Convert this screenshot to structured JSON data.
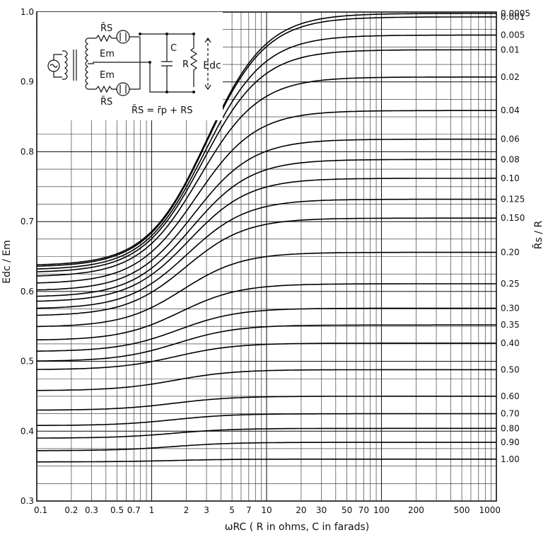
{
  "chart_data": {
    "type": "line",
    "x_scale": "log",
    "xlim": [
      0.1,
      1000
    ],
    "ylim": [
      0.3,
      1.0
    ],
    "grid": true,
    "xlabel": "ωRC ( R in ohms, C in farads)",
    "ylabel": "Edc / Em",
    "right_label": "R̄s / R",
    "x_ticks": [
      "0.1",
      "0.2",
      "0.3",
      "0.5",
      "0.7",
      "1",
      "2",
      "3",
      "5",
      "7",
      "10",
      "20",
      "30",
      "50",
      "70",
      "100",
      "200",
      "500",
      "1000"
    ],
    "x_tick_values": [
      0.1,
      0.2,
      0.3,
      0.5,
      0.7,
      1,
      2,
      3,
      5,
      7,
      10,
      20,
      30,
      50,
      70,
      100,
      200,
      500,
      1000
    ],
    "y_ticks": [
      "0.3",
      "0.4",
      "0.5",
      "0.6",
      "0.7",
      "0.8",
      "0.9",
      "1.0"
    ],
    "y_tick_values": [
      0.3,
      0.4,
      0.5,
      0.6,
      0.7,
      0.8,
      0.9,
      1.0
    ],
    "series": [
      {
        "name": "0.0005",
        "low": 0.637,
        "high": 0.998
      },
      {
        "name": "0.001",
        "low": 0.635,
        "high": 0.993
      },
      {
        "name": "0.005",
        "low": 0.631,
        "high": 0.967
      },
      {
        "name": "0.01",
        "low": 0.627,
        "high": 0.946
      },
      {
        "name": "0.02",
        "low": 0.621,
        "high": 0.907
      },
      {
        "name": "0.04",
        "low": 0.611,
        "high": 0.859
      },
      {
        "name": "0.06",
        "low": 0.601,
        "high": 0.818
      },
      {
        "name": "0.08",
        "low": 0.592,
        "high": 0.789
      },
      {
        "name": "0.10",
        "low": 0.585,
        "high": 0.762
      },
      {
        "name": "0.125",
        "low": 0.575,
        "high": 0.732
      },
      {
        "name": "0.150",
        "low": 0.565,
        "high": 0.705
      },
      {
        "name": "0.20",
        "low": 0.549,
        "high": 0.656
      },
      {
        "name": "0.25",
        "low": 0.53,
        "high": 0.611
      },
      {
        "name": "0.30",
        "low": 0.514,
        "high": 0.576
      },
      {
        "name": "0.35",
        "low": 0.5,
        "high": 0.552
      },
      {
        "name": "0.40",
        "low": 0.488,
        "high": 0.526
      },
      {
        "name": "0.50",
        "low": 0.458,
        "high": 0.488
      },
      {
        "name": "0.60",
        "low": 0.43,
        "high": 0.45
      },
      {
        "name": "0.70",
        "low": 0.408,
        "high": 0.425
      },
      {
        "name": "0.80",
        "low": 0.39,
        "high": 0.404
      },
      {
        "name": "0.90",
        "low": 0.372,
        "high": 0.384
      },
      {
        "name": "1.00",
        "low": 0.356,
        "high": 0.36
      }
    ],
    "inset": {
      "labels": [
        "R̄S",
        "Em",
        "Em",
        "R̄S",
        "C",
        "R",
        "Edc"
      ],
      "formula": "R̄S = r̄p + RS"
    }
  }
}
